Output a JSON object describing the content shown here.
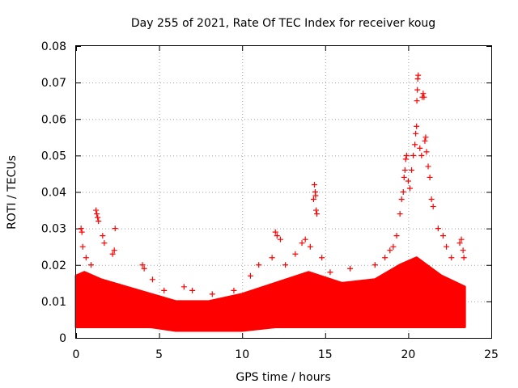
{
  "chart_data": {
    "type": "scatter",
    "title": "Day 255 of 2021, Rate Of TEC Index for receiver koug",
    "xlabel": "GPS time / hours",
    "ylabel": "ROTI / TECUs",
    "xlim": [
      0,
      25
    ],
    "ylim": [
      0,
      0.08
    ],
    "xticks": [
      0,
      5,
      10,
      15,
      20,
      25
    ],
    "xtick_labels": [
      "0",
      "5",
      "10",
      "15",
      "20",
      "25"
    ],
    "yticks": [
      0,
      0.01,
      0.02,
      0.03,
      0.04,
      0.05,
      0.06,
      0.07,
      0.08
    ],
    "ytick_labels": [
      "0",
      "0.01",
      "0.02",
      "0.03",
      "0.04",
      "0.05",
      "0.06",
      "0.07",
      "0.08"
    ],
    "grid": true,
    "marker": "plus",
    "color": "#ff0000",
    "series": [
      {
        "values": [
          [
            0.3,
            0.03
          ],
          [
            0.35,
            0.029
          ],
          [
            0.4,
            0.025
          ],
          [
            0.6,
            0.022
          ],
          [
            0.9,
            0.02
          ],
          [
            1.2,
            0.035
          ],
          [
            1.25,
            0.034
          ],
          [
            1.3,
            0.033
          ],
          [
            1.35,
            0.032
          ],
          [
            1.6,
            0.028
          ],
          [
            1.7,
            0.026
          ],
          [
            2.2,
            0.023
          ],
          [
            2.3,
            0.024
          ],
          [
            2.35,
            0.03
          ],
          [
            4.0,
            0.02
          ],
          [
            4.1,
            0.019
          ],
          [
            4.6,
            0.016
          ],
          [
            5.3,
            0.013
          ],
          [
            6.5,
            0.014
          ],
          [
            7.0,
            0.013
          ],
          [
            8.2,
            0.012
          ],
          [
            9.5,
            0.013
          ],
          [
            10.5,
            0.017
          ],
          [
            11.0,
            0.02
          ],
          [
            11.8,
            0.022
          ],
          [
            12.0,
            0.029
          ],
          [
            12.1,
            0.028
          ],
          [
            12.3,
            0.027
          ],
          [
            12.6,
            0.02
          ],
          [
            13.2,
            0.023
          ],
          [
            13.6,
            0.026
          ],
          [
            13.8,
            0.027
          ],
          [
            14.1,
            0.025
          ],
          [
            14.3,
            0.038
          ],
          [
            14.35,
            0.042
          ],
          [
            14.4,
            0.04
          ],
          [
            14.42,
            0.039
          ],
          [
            14.45,
            0.035
          ],
          [
            14.5,
            0.034
          ],
          [
            14.8,
            0.022
          ],
          [
            15.3,
            0.018
          ],
          [
            16.5,
            0.019
          ],
          [
            18.0,
            0.02
          ],
          [
            18.6,
            0.022
          ],
          [
            18.9,
            0.024
          ],
          [
            19.1,
            0.025
          ],
          [
            19.3,
            0.028
          ],
          [
            19.5,
            0.034
          ],
          [
            19.6,
            0.038
          ],
          [
            19.7,
            0.04
          ],
          [
            19.75,
            0.044
          ],
          [
            19.8,
            0.046
          ],
          [
            19.85,
            0.049
          ],
          [
            19.9,
            0.05
          ],
          [
            20.0,
            0.043
          ],
          [
            20.1,
            0.041
          ],
          [
            20.2,
            0.046
          ],
          [
            20.3,
            0.05
          ],
          [
            20.4,
            0.053
          ],
          [
            20.45,
            0.056
          ],
          [
            20.5,
            0.058
          ],
          [
            20.52,
            0.065
          ],
          [
            20.55,
            0.068
          ],
          [
            20.57,
            0.071
          ],
          [
            20.6,
            0.072
          ],
          [
            20.7,
            0.052
          ],
          [
            20.8,
            0.05
          ],
          [
            20.85,
            0.066
          ],
          [
            20.9,
            0.067
          ],
          [
            20.95,
            0.066
          ],
          [
            21.0,
            0.054
          ],
          [
            21.05,
            0.055
          ],
          [
            21.1,
            0.051
          ],
          [
            21.2,
            0.047
          ],
          [
            21.3,
            0.044
          ],
          [
            21.4,
            0.038
          ],
          [
            21.5,
            0.036
          ],
          [
            21.8,
            0.03
          ],
          [
            22.1,
            0.028
          ],
          [
            22.3,
            0.025
          ],
          [
            22.6,
            0.022
          ],
          [
            23.1,
            0.026
          ],
          [
            23.2,
            0.027
          ],
          [
            23.3,
            0.024
          ],
          [
            23.35,
            0.022
          ]
        ]
      }
    ]
  }
}
